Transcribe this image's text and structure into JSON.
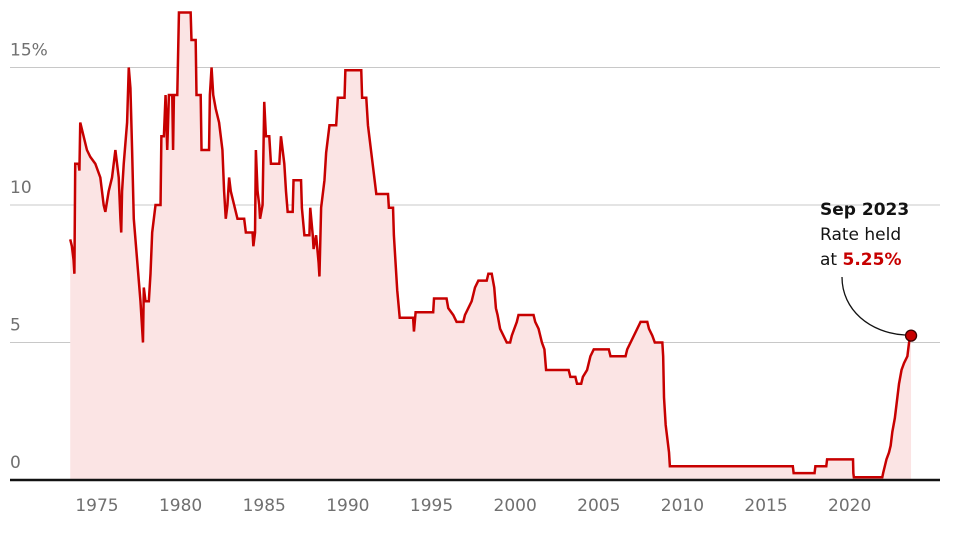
{
  "chart_data": {
    "type": "line",
    "color": "#c70000",
    "area_color": "#fbe4e4",
    "grid": true,
    "xlim": [
      1969.8,
      2025.4
    ],
    "ylim": [
      0,
      17.4
    ],
    "xticks": [
      1975,
      1980,
      1985,
      1990,
      1995,
      2000,
      2005,
      2010,
      2015,
      2020
    ],
    "yticks": [
      0,
      5,
      10,
      {
        "value": 15,
        "label": "15%"
      }
    ],
    "x": [
      1973.4,
      1973.5,
      1973.6,
      1973.65,
      1973.7,
      1973.9,
      1973.95,
      1974.0,
      1974.2,
      1974.4,
      1974.6,
      1974.9,
      1975.2,
      1975.4,
      1975.5,
      1975.7,
      1975.9,
      1976.1,
      1976.3,
      1976.4,
      1976.45,
      1976.5,
      1976.6,
      1976.8,
      1976.9,
      1977.0,
      1977.1,
      1977.2,
      1977.4,
      1977.6,
      1977.75,
      1977.8,
      1977.9,
      1978.1,
      1978.2,
      1978.3,
      1978.5,
      1978.8,
      1978.85,
      1979.0,
      1979.1,
      1979.2,
      1979.3,
      1979.5,
      1979.55,
      1979.6,
      1979.8,
      1979.9,
      1980.6,
      1980.65,
      1980.9,
      1980.95,
      1981.2,
      1981.25,
      1981.7,
      1981.75,
      1981.85,
      1981.95,
      1982.1,
      1982.3,
      1982.5,
      1982.6,
      1982.7,
      1982.8,
      1982.9,
      1983.0,
      1983.2,
      1983.4,
      1983.8,
      1983.9,
      1984.3,
      1984.35,
      1984.45,
      1984.5,
      1984.6,
      1984.7,
      1984.75,
      1984.9,
      1985.0,
      1985.1,
      1985.3,
      1985.4,
      1985.9,
      1986.0,
      1986.2,
      1986.3,
      1986.4,
      1986.7,
      1986.75,
      1987.2,
      1987.25,
      1987.4,
      1987.7,
      1987.75,
      1987.9,
      1987.95,
      1988.1,
      1988.25,
      1988.3,
      1988.4,
      1988.6,
      1988.7,
      1988.9,
      1989.3,
      1989.4,
      1989.8,
      1989.85,
      1990.8,
      1990.85,
      1991.1,
      1991.2,
      1991.3,
      1991.4,
      1991.5,
      1991.6,
      1991.7,
      1992.4,
      1992.45,
      1992.7,
      1992.75,
      1992.85,
      1992.95,
      1993.1,
      1993.9,
      1993.95,
      1994.05,
      1995.1,
      1995.15,
      1995.9,
      1996.0,
      1996.3,
      1996.5,
      1996.9,
      1997.0,
      1997.4,
      1997.6,
      1997.8,
      1998.3,
      1998.4,
      1998.6,
      1998.75,
      1998.85,
      1998.95,
      1999.1,
      1999.3,
      1999.5,
      1999.7,
      1999.8,
      1999.95,
      2000.1,
      2000.2,
      2001.1,
      2001.2,
      2001.4,
      2001.6,
      2001.75,
      2001.85,
      2003.2,
      2003.3,
      2003.6,
      2003.7,
      2003.95,
      2004.05,
      2004.3,
      2004.5,
      2004.7,
      2005.6,
      2005.7,
      2006.6,
      2006.7,
      2006.9,
      2007.1,
      2007.3,
      2007.5,
      2007.9,
      2008.0,
      2008.2,
      2008.35,
      2008.8,
      2008.85,
      2008.9,
      2009.0,
      2009.1,
      2009.2,
      2009.25,
      2016.6,
      2016.65,
      2017.9,
      2017.95,
      2018.6,
      2018.65,
      2020.2,
      2020.22,
      2020.25,
      2021.95,
      2022.0,
      2022.1,
      2022.2,
      2022.35,
      2022.45,
      2022.55,
      2022.7,
      2022.85,
      2022.95,
      2023.1,
      2023.25,
      2023.45,
      2023.55,
      2023.67
    ],
    "values": [
      8.75,
      8.5,
      8.0,
      7.5,
      11.5,
      11.5,
      11.25,
      13.0,
      12.5,
      12.0,
      11.75,
      11.5,
      11.0,
      10.0,
      9.75,
      10.5,
      11.0,
      12.0,
      11.0,
      9.5,
      9.0,
      10.5,
      11.5,
      13.0,
      15.0,
      14.25,
      12.0,
      9.5,
      8.0,
      6.5,
      5.0,
      7.0,
      6.5,
      6.5,
      7.5,
      9.0,
      10.0,
      10.0,
      12.5,
      12.5,
      14.0,
      12.0,
      14.0,
      14.0,
      12.0,
      14.0,
      14.0,
      17.0,
      17.0,
      16.0,
      16.0,
      14.0,
      14.0,
      12.0,
      12.0,
      14.0,
      15.0,
      14.0,
      13.5,
      13.0,
      12.0,
      10.5,
      9.5,
      10.0,
      11.0,
      10.5,
      10.0,
      9.5,
      9.5,
      9.0,
      9.0,
      8.5,
      9.0,
      12.0,
      10.5,
      10.0,
      9.5,
      10.0,
      13.75,
      12.5,
      12.5,
      11.5,
      11.5,
      12.5,
      11.5,
      10.5,
      9.75,
      9.75,
      10.9,
      10.9,
      9.9,
      8.9,
      8.9,
      9.9,
      8.9,
      8.4,
      8.9,
      7.9,
      7.4,
      9.9,
      10.9,
      11.9,
      12.9,
      12.9,
      13.9,
      13.9,
      14.9,
      14.9,
      13.9,
      13.9,
      12.9,
      12.4,
      11.9,
      11.4,
      10.9,
      10.4,
      10.4,
      9.9,
      9.9,
      8.9,
      7.9,
      6.9,
      5.9,
      5.9,
      5.4,
      6.1,
      6.1,
      6.6,
      6.6,
      6.25,
      6.0,
      5.75,
      5.75,
      6.0,
      6.5,
      7.0,
      7.25,
      7.25,
      7.5,
      7.5,
      7.0,
      6.25,
      6.0,
      5.5,
      5.25,
      5.0,
      5.0,
      5.25,
      5.5,
      5.75,
      6.0,
      6.0,
      5.75,
      5.5,
      5.0,
      4.75,
      4.0,
      4.0,
      3.75,
      3.75,
      3.5,
      3.5,
      3.75,
      4.0,
      4.5,
      4.75,
      4.75,
      4.5,
      4.5,
      4.75,
      5.0,
      5.25,
      5.5,
      5.75,
      5.75,
      5.5,
      5.25,
      5.0,
      5.0,
      4.5,
      3.0,
      2.0,
      1.5,
      1.0,
      0.5,
      0.5,
      0.25,
      0.25,
      0.5,
      0.5,
      0.75,
      0.75,
      0.25,
      0.1,
      0.1,
      0.25,
      0.5,
      0.75,
      1.0,
      1.25,
      1.75,
      2.25,
      3.0,
      3.5,
      4.0,
      4.25,
      4.5,
      5.0,
      5.25
    ],
    "annotation": {
      "date": "Sep 2023",
      "text1": "Rate held",
      "text2": "at",
      "highlight": "5.25%"
    }
  }
}
